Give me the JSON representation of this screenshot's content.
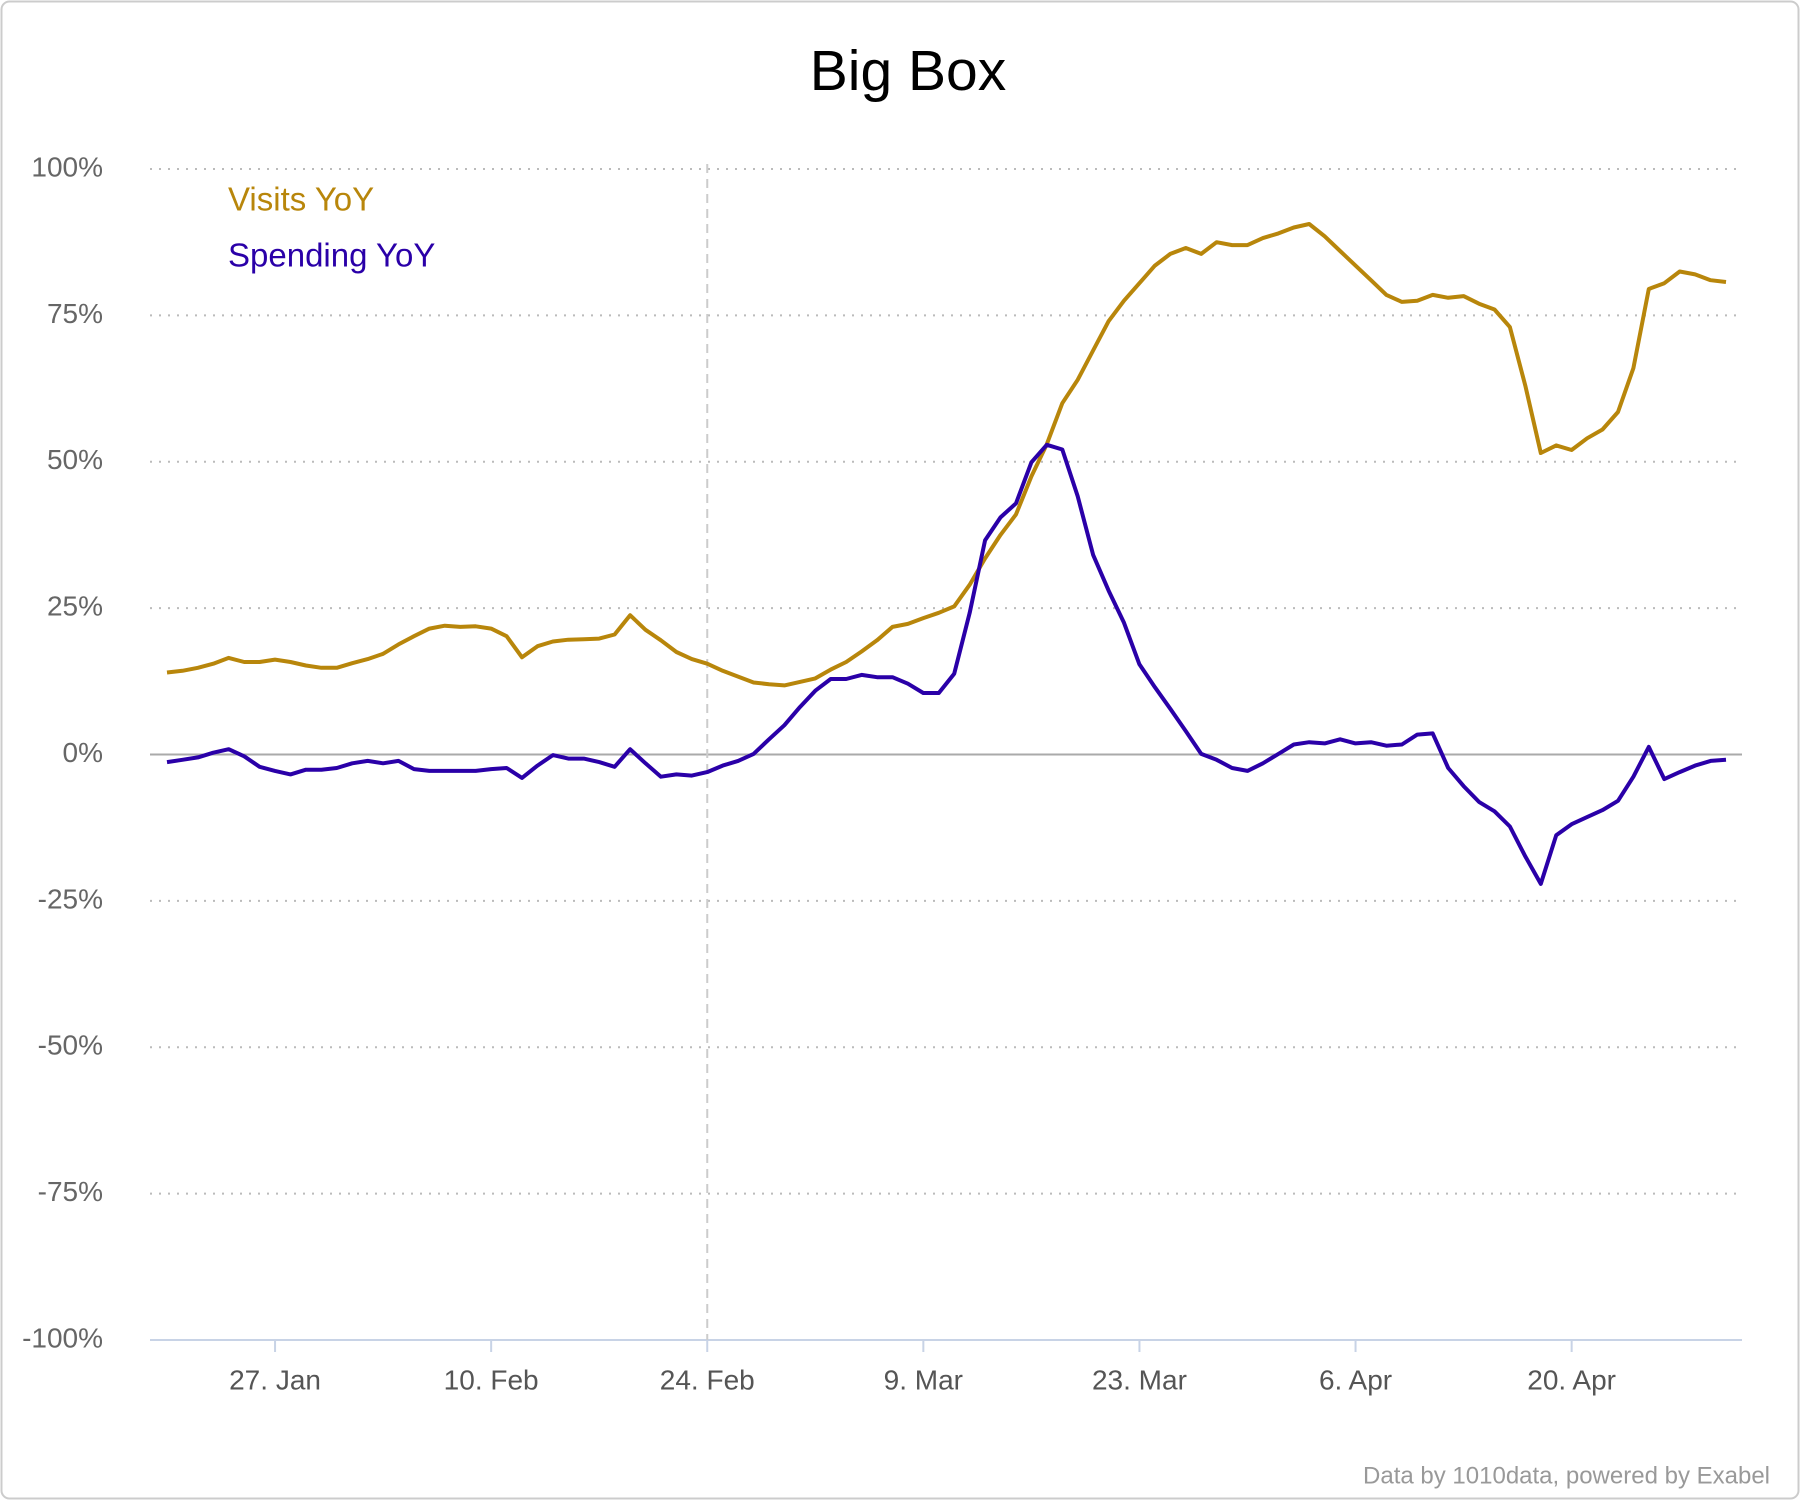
{
  "chart_data": {
    "type": "line",
    "title": "Big Box",
    "credit": "Data by 1010data, powered by Exabel",
    "x": [
      "20. Jan",
      "21. Jan",
      "22. Jan",
      "23. Jan",
      "24. Jan",
      "25. Jan",
      "26. Jan",
      "27. Jan",
      "28. Jan",
      "29. Jan",
      "30. Jan",
      "31. Jan",
      "1. Feb",
      "2. Feb",
      "3. Feb",
      "4. Feb",
      "5. Feb",
      "6. Feb",
      "7. Feb",
      "8. Feb",
      "9. Feb",
      "10. Feb",
      "11. Feb",
      "12. Feb",
      "13. Feb",
      "14. Feb",
      "15. Feb",
      "16. Feb",
      "17. Feb",
      "18. Feb",
      "19. Feb",
      "20. Feb",
      "21. Feb",
      "22. Feb",
      "23. Feb",
      "24. Feb",
      "25. Feb",
      "26. Feb",
      "27. Feb",
      "28. Feb",
      "29. Feb",
      "1. Mar",
      "2. Mar",
      "3. Mar",
      "4. Mar",
      "5. Mar",
      "6. Mar",
      "7. Mar",
      "8. Mar",
      "9. Mar",
      "10. Mar",
      "11. Mar",
      "12. Mar",
      "13. Mar",
      "14. Mar",
      "15. Mar",
      "16. Mar",
      "17. Mar",
      "18. Mar",
      "19. Mar",
      "20. Mar",
      "21. Mar",
      "22. Mar",
      "23. Mar",
      "24. Mar",
      "25. Mar",
      "26. Mar",
      "27. Mar",
      "28. Mar",
      "29. Mar",
      "30. Mar",
      "31. Mar",
      "1. Apr",
      "2. Apr",
      "3. Apr",
      "4. Apr",
      "5. Apr",
      "6. Apr",
      "7. Apr",
      "8. Apr",
      "9. Apr",
      "10. Apr",
      "11. Apr",
      "12. Apr",
      "13. Apr",
      "14. Apr",
      "15. Apr",
      "16. Apr",
      "17. Apr",
      "18. Apr",
      "19. Apr",
      "20. Apr",
      "21. Apr",
      "22. Apr",
      "23. Apr",
      "24. Apr",
      "25. Apr",
      "26. Apr",
      "27. Apr",
      "28. Apr",
      "29. Apr",
      "30. Apr"
    ],
    "series": [
      {
        "name": "Visits YoY",
        "color": "#b8860b",
        "values": [
          14,
          14.3,
          14.8,
          15.5,
          16.5,
          15.8,
          15.8,
          16.2,
          15.8,
          15.2,
          14.8,
          14.8,
          15.6,
          16.3,
          17.2,
          18.8,
          20.2,
          21.5,
          22,
          21.8,
          21.9,
          21.5,
          20.2,
          16.6,
          18.5,
          19.3,
          19.6,
          19.7,
          19.8,
          20.5,
          23.8,
          21.3,
          19.5,
          17.5,
          16.3,
          15.5,
          14.3,
          13.3,
          12.3,
          12,
          11.8,
          12.4,
          13,
          14.5,
          15.8,
          17.6,
          19.5,
          21.8,
          22.3,
          23.3,
          24.2,
          25.3,
          29,
          33.5,
          37.5,
          41,
          47.5,
          53,
          60,
          64,
          69,
          74,
          77.5,
          80.5,
          83.5,
          85.5,
          86.5,
          85.5,
          87.5,
          87,
          87,
          88.2,
          89,
          90,
          90.6,
          88.5,
          86,
          83.5,
          81,
          78.5,
          77.3,
          77.5,
          78.5,
          78,
          78.3,
          77,
          76,
          73,
          63,
          51.5,
          52.8,
          52,
          54,
          55.5,
          58.5,
          66,
          79.5,
          80.5,
          82.5,
          82,
          81,
          80.7
        ]
      },
      {
        "name": "Spending YoY",
        "color": "#2a00a8",
        "values": [
          -1.3,
          -0.9,
          -0.5,
          0.3,
          0.9,
          -0.3,
          -2.1,
          -2.8,
          -3.4,
          -2.6,
          -2.6,
          -2.3,
          -1.5,
          -1.1,
          -1.5,
          -1.1,
          -2.5,
          -2.8,
          -2.8,
          -2.8,
          -2.8,
          -2.5,
          -2.3,
          -4,
          -1.9,
          -0.1,
          -0.7,
          -0.7,
          -1.3,
          -2.1,
          0.9,
          -1.5,
          -3.8,
          -3.4,
          -3.6,
          -3,
          -1.9,
          -1.1,
          0.1,
          2.6,
          5,
          8.1,
          10.9,
          12.9,
          12.9,
          13.6,
          13.2,
          13.2,
          12.1,
          10.5,
          10.5,
          13.8,
          24.2,
          36.6,
          40.5,
          42.9,
          49.9,
          52.9,
          52.1,
          44.1,
          34.1,
          28,
          22.5,
          15.4,
          11.5,
          7.8,
          4,
          0.1,
          -0.9,
          -2.3,
          -2.8,
          -1.5,
          0.1,
          1.7,
          2.1,
          1.9,
          2.6,
          1.9,
          2.1,
          1.5,
          1.7,
          3.4,
          3.6,
          -2.3,
          -5.4,
          -8.1,
          -9.7,
          -12.3,
          -17.4,
          -22.1,
          -13.8,
          -11.9,
          -10.7,
          -9.5,
          -7.9,
          -3.8,
          1.3,
          -4.2,
          -3,
          -1.9,
          -1.1,
          -0.9
        ]
      }
    ],
    "xticks": [
      "27. Jan",
      "10. Feb",
      "24. Feb",
      "9. Mar",
      "23. Mar",
      "6. Apr",
      "20. Apr"
    ],
    "vline": "24. Feb",
    "ylim": [
      -100,
      100
    ],
    "yticks": [
      {
        "value": -100,
        "label": "-100%"
      },
      {
        "value": -75,
        "label": "-75%"
      },
      {
        "value": -50,
        "label": "-50%"
      },
      {
        "value": -25,
        "label": "-25%"
      },
      {
        "value": 0,
        "label": "0%"
      },
      {
        "value": 25,
        "label": "25%"
      },
      {
        "value": 50,
        "label": "50%"
      },
      {
        "value": 75,
        "label": "75%"
      },
      {
        "value": 100,
        "label": "100%"
      }
    ],
    "grid": true,
    "legend": "upper left"
  }
}
